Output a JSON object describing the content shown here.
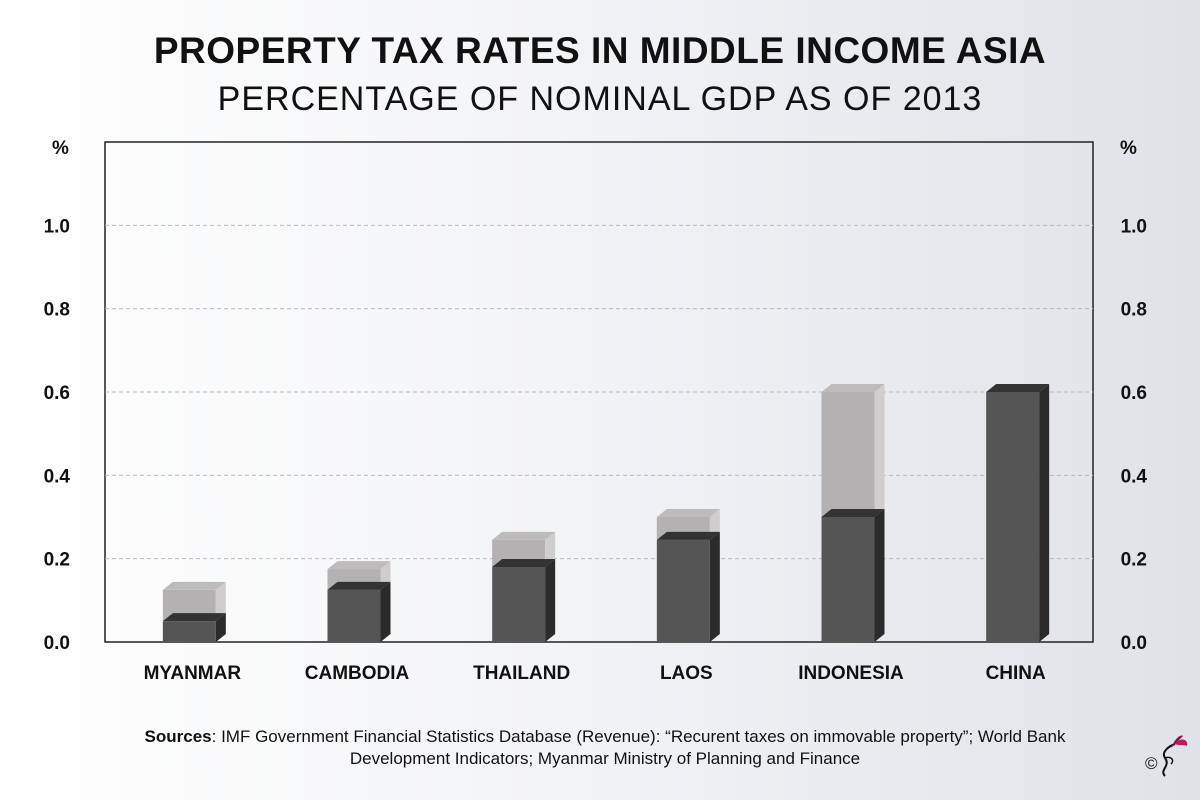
{
  "header": {
    "title": "PROPERTY TAX RATES IN MIDDLE INCOME ASIA",
    "subtitle": "PERCENTAGE OF NOMINAL GDP AS OF 2013"
  },
  "footer": {
    "sources_label": "Sources",
    "sources_text": ": IMF Government Financial Statistics Database (Revenue): “Recurent taxes on immovable property”; World Bank Development Indicators; Myanmar Ministry of Planning and Finance",
    "copyright": "©"
  },
  "colors": {
    "bar_front": "#555555",
    "bar_side": "#2b2b2b",
    "bar_top": "#333333",
    "range_front": "#b4b1b2",
    "range_side": "#cfcdce",
    "range_top": "#bdbbbc",
    "grid": "#b9bcc2",
    "logo_accent": "#c2185b"
  },
  "chart_data": {
    "type": "bar",
    "categories": [
      "MYANMAR",
      "CAMBODIA",
      "THAILAND",
      "LAOS",
      "INDONESIA",
      "CHINA"
    ],
    "series": [
      {
        "values": [
          0.05,
          0.125,
          0.18,
          0.245,
          0.3,
          0.6
        ]
      },
      {
        "values": [
          0.125,
          0.175,
          0.245,
          0.3,
          0.6,
          0.6
        ]
      }
    ],
    "ylabel": "%",
    "ylabel_right": "%",
    "ylim": [
      0,
      1.2
    ],
    "yticks": [
      "0.0",
      "0.2",
      "0.4",
      "0.6",
      "0.8",
      "1.0"
    ],
    "grid": true
  }
}
